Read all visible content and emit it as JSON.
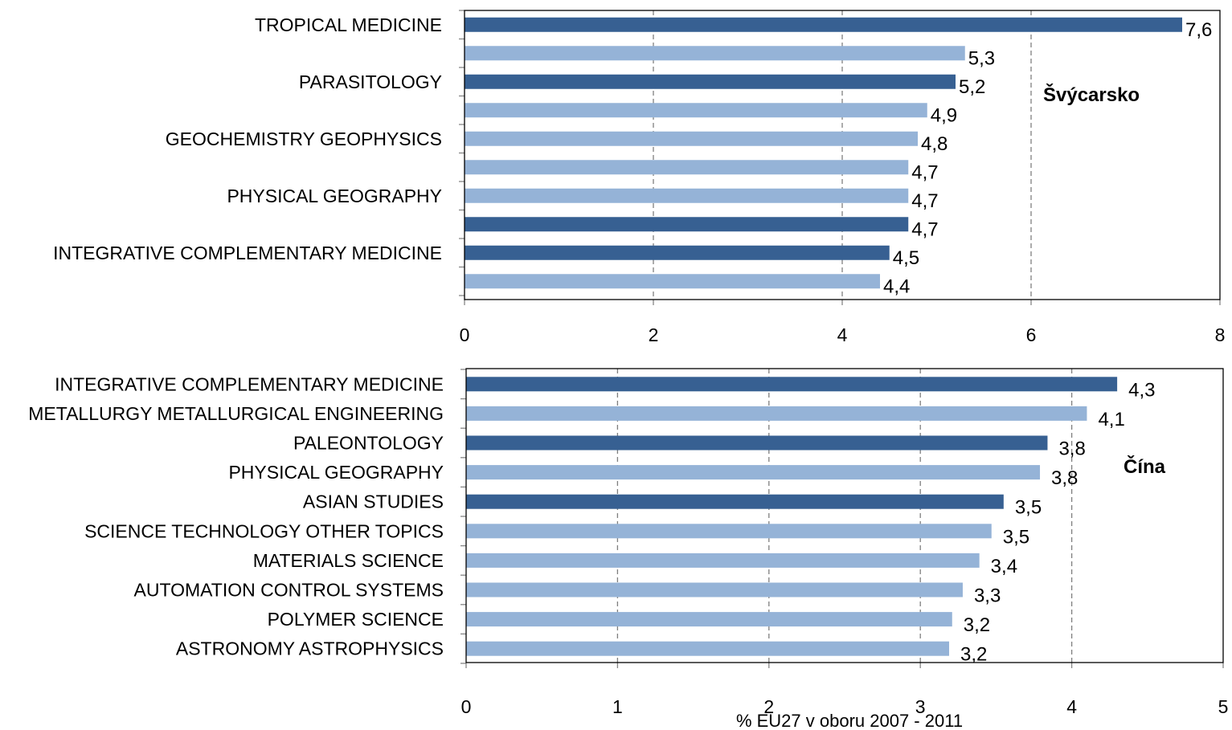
{
  "chart_data": [
    {
      "type": "bar",
      "orientation": "horizontal",
      "panel_title": "Švýcarsko",
      "xlim": [
        0,
        8
      ],
      "xticks": [
        "0",
        "2",
        "4",
        "6",
        "8"
      ],
      "grid": "vertical-dashed",
      "categories": [
        "TROPICAL MEDICINE",
        "",
        "PARASITOLOGY",
        "",
        "GEOCHEMISTRY GEOPHYSICS",
        "",
        "PHYSICAL GEOGRAPHY",
        "",
        "INTEGRATIVE COMPLEMENTARY MEDICINE",
        ""
      ],
      "values": [
        7.6,
        5.3,
        5.2,
        4.9,
        4.8,
        4.7,
        4.7,
        4.7,
        4.5,
        4.4
      ],
      "value_labels": [
        "7,6",
        "5,3",
        "5,2",
        "4,9",
        "4,8",
        "4,7",
        "4,7",
        "4,7",
        "4,5",
        "4,4"
      ],
      "highlight": [
        true,
        false,
        true,
        false,
        false,
        false,
        false,
        true,
        true,
        false
      ],
      "colors": {
        "highlight": "#376092",
        "normal": "#95B3D7"
      }
    },
    {
      "type": "bar",
      "orientation": "horizontal",
      "panel_title": "Čína",
      "xlim": [
        0,
        5
      ],
      "xticks": [
        "0",
        "1",
        "2",
        "3",
        "4",
        "5"
      ],
      "xlabel": "% EU27 v oboru 2007 - 2011",
      "grid": "vertical-dashed",
      "categories": [
        "INTEGRATIVE COMPLEMENTARY MEDICINE",
        "METALLURGY METALLURGICAL ENGINEERING",
        "PALEONTOLOGY",
        "PHYSICAL GEOGRAPHY",
        "ASIAN STUDIES",
        "SCIENCE TECHNOLOGY OTHER TOPICS",
        "MATERIALS SCIENCE",
        "AUTOMATION CONTROL SYSTEMS",
        "POLYMER SCIENCE",
        "ASTRONOMY ASTROPHYSICS"
      ],
      "values": [
        4.3,
        4.1,
        3.84,
        3.79,
        3.55,
        3.47,
        3.39,
        3.28,
        3.21,
        3.19
      ],
      "value_labels": [
        "4,3",
        "4,1",
        "3,8",
        "3,8",
        "3,5",
        "3,5",
        "3,4",
        "3,3",
        "3,2",
        "3,2"
      ],
      "highlight": [
        true,
        false,
        true,
        false,
        true,
        false,
        false,
        false,
        false,
        false
      ],
      "colors": {
        "highlight": "#376092",
        "normal": "#95B3D7"
      }
    }
  ]
}
